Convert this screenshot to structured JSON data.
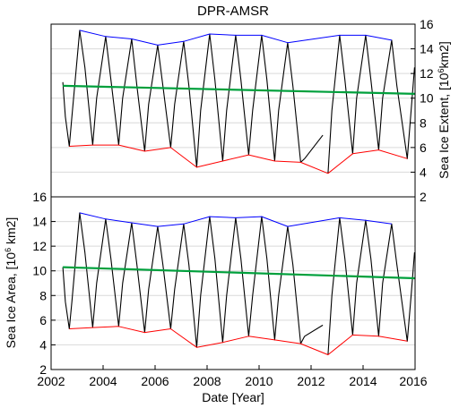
{
  "chart_data": [
    {
      "type": "line",
      "title": "DPR-AMSR",
      "xlabel": "",
      "ylabel": "Sea Ice Extent, [10^6km2]",
      "ylabel_parts": {
        "pre": "Sea Ice Extent, [10",
        "sup": "6",
        "post": "km2]"
      },
      "y_axis_side": "right",
      "xlim": [
        2002,
        2016
      ],
      "ylim": [
        2,
        16
      ],
      "yticks": [
        2,
        4,
        6,
        8,
        10,
        12,
        14,
        16
      ],
      "grid": "horizontal",
      "series": [
        {
          "color": "#000000",
          "style": "seasonal-cycle",
          "x": [
            2002.45,
            2002.55,
            2002.7,
            2002.8,
            2003.1,
            2003.3,
            2003.6,
            2003.75,
            2004.1,
            2004.3,
            2004.6,
            2004.75,
            2005.1,
            2005.3,
            2005.6,
            2005.75,
            2006.1,
            2006.3,
            2006.6,
            2006.75,
            2007.1,
            2007.3,
            2007.6,
            2007.75,
            2008.1,
            2008.3,
            2008.6,
            2008.75,
            2009.1,
            2009.3,
            2009.6,
            2009.75,
            2010.1,
            2010.3,
            2010.6,
            2010.75,
            2011.1,
            2011.3,
            2011.6,
            2011.75
          ],
          "y": [
            11.3,
            8.5,
            6.1,
            8.5,
            15.5,
            12.5,
            6.2,
            10.0,
            15.0,
            11.5,
            6.2,
            10.0,
            14.8,
            11.0,
            5.7,
            9.5,
            14.3,
            11.0,
            6.0,
            9.5,
            14.6,
            11.0,
            4.4,
            9.0,
            15.2,
            11.5,
            4.9,
            9.0,
            15.1,
            11.5,
            5.4,
            9.0,
            15.1,
            11.5,
            4.9,
            9.0,
            14.5,
            11.0,
            4.8,
            5.1
          ]
        },
        {
          "color": "#000000",
          "style": "seasonal-cycle",
          "x": [
            2012.65,
            2012.8,
            2013.1,
            2013.3,
            2013.6,
            2013.75,
            2014.1,
            2014.3,
            2014.6,
            2014.75,
            2015.1,
            2015.3,
            2015.7,
            2015.85,
            2015.98
          ],
          "y": [
            3.9,
            9.0,
            15.1,
            11.5,
            5.5,
            10.0,
            15.1,
            11.5,
            5.8,
            10.0,
            14.7,
            11.0,
            5.1,
            9.0,
            12.5
          ]
        },
        {
          "color": "#000000",
          "style": "gap-segment",
          "x": [
            2011.75,
            2012.45
          ],
          "y": [
            5.1,
            7.0
          ]
        },
        {
          "color": "#0000ff",
          "style": "maxima-envelope",
          "x": [
            2003.1,
            2004.1,
            2005.1,
            2006.1,
            2007.1,
            2008.1,
            2009.1,
            2010.1,
            2011.1,
            2013.1,
            2014.1,
            2015.1
          ],
          "y": [
            15.5,
            15.0,
            14.8,
            14.3,
            14.6,
            15.2,
            15.1,
            15.1,
            14.5,
            15.1,
            15.1,
            14.7
          ]
        },
        {
          "color": "#ff0000",
          "style": "minima-envelope",
          "x": [
            2002.7,
            2003.6,
            2004.6,
            2005.6,
            2006.6,
            2007.6,
            2008.6,
            2009.6,
            2010.6,
            2011.6,
            2012.65,
            2013.6,
            2014.6,
            2015.7
          ],
          "y": [
            6.1,
            6.2,
            6.2,
            5.7,
            6.0,
            4.4,
            4.9,
            5.4,
            4.9,
            4.8,
            3.9,
            5.5,
            5.8,
            5.1
          ]
        },
        {
          "color": "#00a03c",
          "style": "trend",
          "x": [
            2002.45,
            2016
          ],
          "y": [
            11.0,
            10.35
          ]
        }
      ]
    },
    {
      "type": "line",
      "title": "",
      "xlabel": "Date [Year]",
      "ylabel": "Sea Ice Area, [10^6 km2]",
      "ylabel_parts": {
        "pre": "Sea Ice Area, [10",
        "sup": "6",
        "post": " km2]"
      },
      "y_axis_side": "left",
      "xlim": [
        2002,
        2016
      ],
      "ylim": [
        2,
        16
      ],
      "xticks": [
        2002,
        2004,
        2006,
        2008,
        2010,
        2012,
        2014,
        2016
      ],
      "yticks": [
        2,
        4,
        6,
        8,
        10,
        12,
        14,
        16
      ],
      "grid": "horizontal",
      "series": [
        {
          "color": "#000000",
          "style": "seasonal-cycle",
          "x": [
            2002.45,
            2002.55,
            2002.7,
            2002.8,
            2003.1,
            2003.3,
            2003.6,
            2003.75,
            2004.1,
            2004.3,
            2004.6,
            2004.75,
            2005.1,
            2005.3,
            2005.6,
            2005.75,
            2006.1,
            2006.3,
            2006.6,
            2006.75,
            2007.1,
            2007.3,
            2007.6,
            2007.75,
            2008.1,
            2008.3,
            2008.6,
            2008.75,
            2009.1,
            2009.3,
            2009.6,
            2009.75,
            2010.1,
            2010.3,
            2010.6,
            2010.75,
            2011.1,
            2011.3,
            2011.6,
            2011.75
          ],
          "y": [
            10.3,
            7.5,
            5.3,
            7.5,
            14.7,
            11.5,
            5.4,
            9.0,
            14.2,
            11.0,
            5.5,
            9.0,
            13.9,
            10.5,
            5.0,
            8.5,
            13.6,
            10.5,
            5.3,
            8.5,
            13.8,
            10.5,
            3.8,
            8.0,
            14.4,
            11.0,
            4.2,
            8.0,
            14.3,
            11.0,
            4.7,
            8.0,
            14.4,
            11.0,
            4.4,
            8.0,
            13.6,
            10.5,
            4.1,
            4.7
          ]
        },
        {
          "color": "#000000",
          "style": "seasonal-cycle",
          "x": [
            2012.65,
            2012.8,
            2013.1,
            2013.3,
            2013.6,
            2013.75,
            2014.1,
            2014.3,
            2014.6,
            2014.75,
            2015.1,
            2015.3,
            2015.7,
            2015.85,
            2015.98
          ],
          "y": [
            3.2,
            8.0,
            14.3,
            11.0,
            4.8,
            9.0,
            14.1,
            11.0,
            4.7,
            9.0,
            13.8,
            10.5,
            4.3,
            8.0,
            11.5
          ]
        },
        {
          "color": "#000000",
          "style": "gap-segment",
          "x": [
            2011.75,
            2012.45
          ],
          "y": [
            4.7,
            5.6
          ]
        },
        {
          "color": "#0000ff",
          "style": "maxima-envelope",
          "x": [
            2003.1,
            2004.1,
            2005.1,
            2006.1,
            2007.1,
            2008.1,
            2009.1,
            2010.1,
            2011.1,
            2013.1,
            2014.1,
            2015.1
          ],
          "y": [
            14.7,
            14.2,
            13.9,
            13.6,
            13.8,
            14.4,
            14.3,
            14.4,
            13.6,
            14.3,
            14.1,
            13.8
          ]
        },
        {
          "color": "#ff0000",
          "style": "minima-envelope",
          "x": [
            2002.7,
            2003.6,
            2004.6,
            2005.6,
            2006.6,
            2007.6,
            2008.6,
            2009.6,
            2010.6,
            2011.6,
            2012.65,
            2013.6,
            2014.6,
            2015.7
          ],
          "y": [
            5.3,
            5.4,
            5.5,
            5.0,
            5.3,
            3.8,
            4.2,
            4.7,
            4.4,
            4.1,
            3.2,
            4.8,
            4.7,
            4.3
          ]
        },
        {
          "color": "#00a03c",
          "style": "trend",
          "x": [
            2002.45,
            2016
          ],
          "y": [
            10.3,
            9.4
          ]
        }
      ]
    }
  ]
}
